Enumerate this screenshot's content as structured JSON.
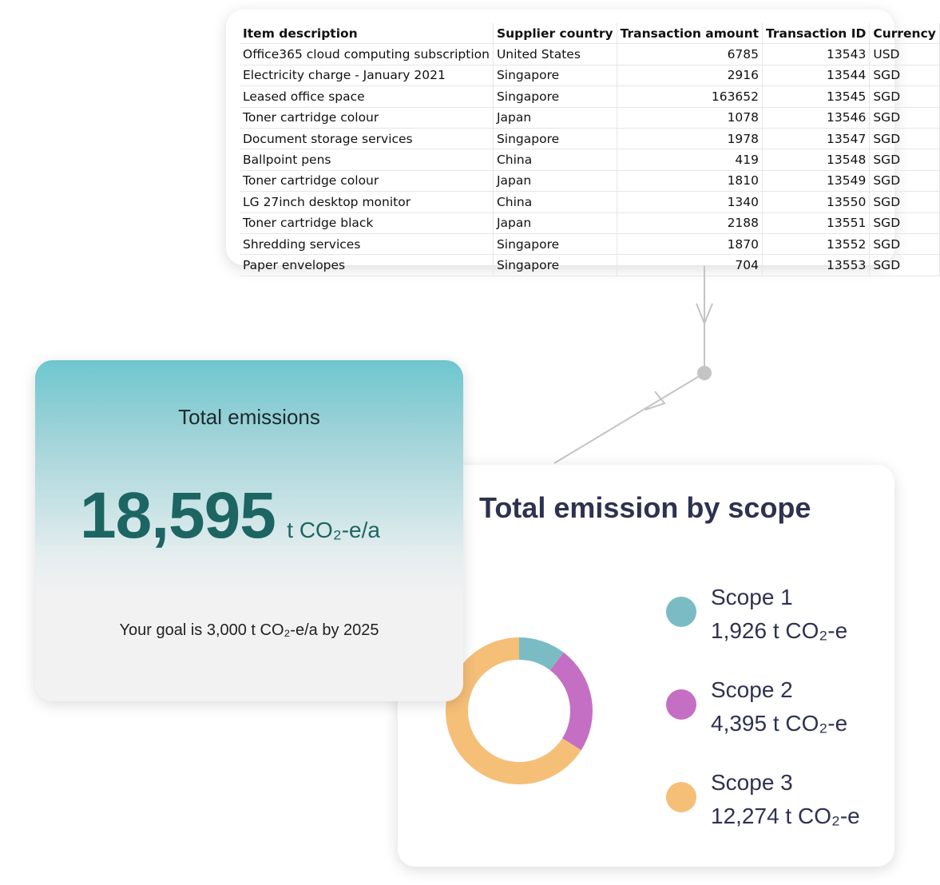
{
  "table": {
    "headers": [
      "Item description",
      "Supplier country",
      "Transaction amount",
      "Transaction ID",
      "Currency"
    ],
    "rows": [
      [
        "Office365 cloud computing subscription",
        "United States",
        6785,
        13543,
        "USD"
      ],
      [
        "Electricity charge - January 2021",
        "Singapore",
        2916,
        13544,
        "SGD"
      ],
      [
        "Leased office space",
        "Singapore",
        163652,
        13545,
        "SGD"
      ],
      [
        "Toner cartridge colour",
        "Japan",
        1078,
        13546,
        "SGD"
      ],
      [
        "Document storage services",
        "Singapore",
        1978,
        13547,
        "SGD"
      ],
      [
        "Ballpoint pens",
        "China",
        419,
        13548,
        "SGD"
      ],
      [
        "Toner cartridge colour",
        "Japan",
        1810,
        13549,
        "SGD"
      ],
      [
        "LG 27inch desktop monitor",
        "China",
        1340,
        13550,
        "SGD"
      ],
      [
        "Toner cartridge black",
        "Japan",
        2188,
        13551,
        "SGD"
      ],
      [
        "Shredding services",
        "Singapore",
        1870,
        13552,
        "SGD"
      ],
      [
        "Paper envelopes",
        "Singapore",
        704,
        13553,
        "SGD"
      ]
    ]
  },
  "summary": {
    "title": "Total emissions",
    "value": "18,595",
    "unit": "t CO₂-e/a",
    "goal": "Your goal is 3,000 t CO₂-e/a by 2025"
  },
  "chart_data": {
    "type": "pie",
    "title": "Total emission by scope",
    "donut": true,
    "categories": [
      "Scope 1",
      "Scope 2",
      "Scope 3"
    ],
    "values": [
      1926,
      4395,
      12274
    ],
    "value_labels": [
      "1,926 t CO₂-e",
      "4,395 t CO₂-e",
      "12,274 t CO₂-e"
    ],
    "colors": [
      "#7bbcc4",
      "#c46fc4",
      "#f5bf78"
    ]
  }
}
